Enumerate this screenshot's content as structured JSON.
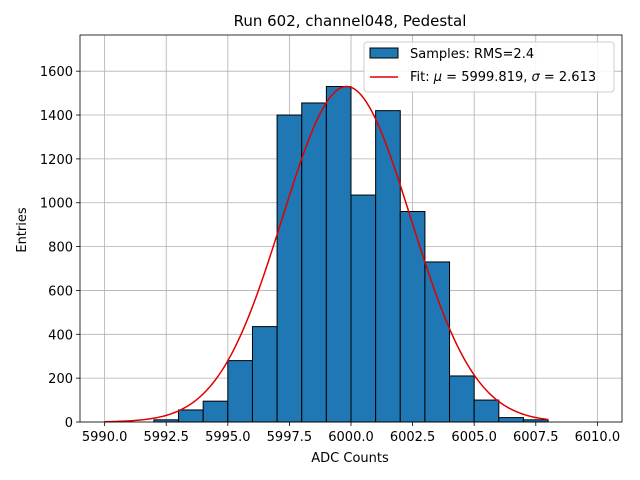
{
  "chart_data": {
    "type": "bar",
    "title": "Run 602, channel048, Pedestal",
    "xlabel": "ADC Counts",
    "ylabel": "Entries",
    "xlim": [
      5989.0,
      6011.0
    ],
    "ylim": [
      0,
      1765
    ],
    "grid": true,
    "legend_position": "top-right",
    "xticks": [
      5990.0,
      5992.5,
      5995.0,
      5997.5,
      6000.0,
      6002.5,
      6005.0,
      6007.5,
      6010.0
    ],
    "xtick_labels": [
      "5990.0",
      "5992.5",
      "5995.0",
      "5997.5",
      "6000.0",
      "6002.5",
      "6005.0",
      "6007.5",
      "6010.0"
    ],
    "yticks": [
      0,
      200,
      400,
      600,
      800,
      1000,
      1200,
      1400,
      1600
    ],
    "ytick_labels": [
      "0",
      "200",
      "400",
      "600",
      "800",
      "1000",
      "1200",
      "1400",
      "1600"
    ],
    "histogram": {
      "name": "Samples: RMS=2.4",
      "color": "#1f77b4",
      "edge_color": "#000000",
      "bin_edges": [
        5992,
        5993,
        5994,
        5995,
        5996,
        5997,
        5998,
        5999,
        6000,
        6001,
        6002,
        6003,
        6004,
        6005,
        6006,
        6007,
        6008
      ],
      "counts": [
        10,
        55,
        95,
        280,
        435,
        1400,
        1455,
        1530,
        1035,
        1420,
        960,
        730,
        210,
        100,
        20,
        10
      ]
    },
    "fit": {
      "name_prefix": "Fit: ",
      "label_mu": "μ",
      "mu_value": " = 5999.819, ",
      "label_sigma": "σ",
      "sigma_value": " = 2.613",
      "color": "#e00000",
      "mu": 5999.819,
      "sigma": 2.613,
      "amplitude": 1530,
      "x_range": [
        5990.0,
        6008.0
      ]
    }
  }
}
